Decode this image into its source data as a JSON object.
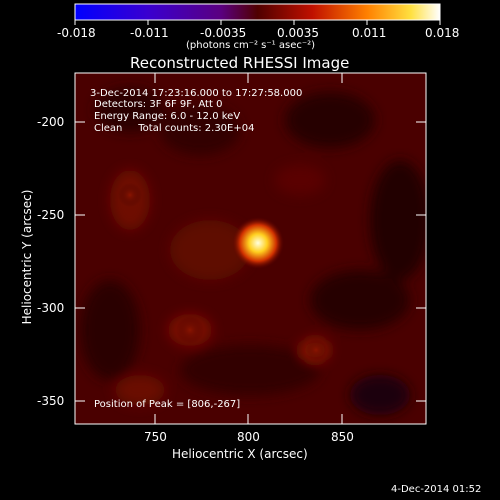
{
  "colorbar": {
    "tick_labels": [
      "-0.018",
      "-0.011",
      "-0.0035",
      "0.0035",
      "0.011",
      "0.018"
    ],
    "units_label": "(photons cm⁻² s⁻¹ asec⁻²)",
    "min": -0.018,
    "max": 0.018
  },
  "plot": {
    "title": "Reconstructed RHESSI Image",
    "xlabel": "Heliocentric X (arcsec)",
    "ylabel": "Heliocentric Y (arcsec)",
    "x_ticks": [
      "750",
      "800",
      "850"
    ],
    "y_ticks": [
      "-200",
      "-250",
      "-300",
      "-350"
    ],
    "xlim": [
      707,
      895
    ],
    "ylim": [
      -365,
      -178
    ],
    "annotations": {
      "time_range": "3-Dec-2014 17:23:16.000 to 17:27:58.000",
      "detectors": "Detectors: 3F 6F 9F, Att 0",
      "energy_range": "Energy Range: 6.0 - 12.0 keV",
      "clean_counts": "Clean     Total counts: 2.30E+04",
      "peak_position": "Position of Peak = [806,-267]"
    }
  },
  "footer": {
    "timestamp": "4-Dec-2014 01:52"
  },
  "colors": {
    "background": "#000000",
    "colormap_low": "#0000ff",
    "colormap_high": "#ffffff"
  }
}
